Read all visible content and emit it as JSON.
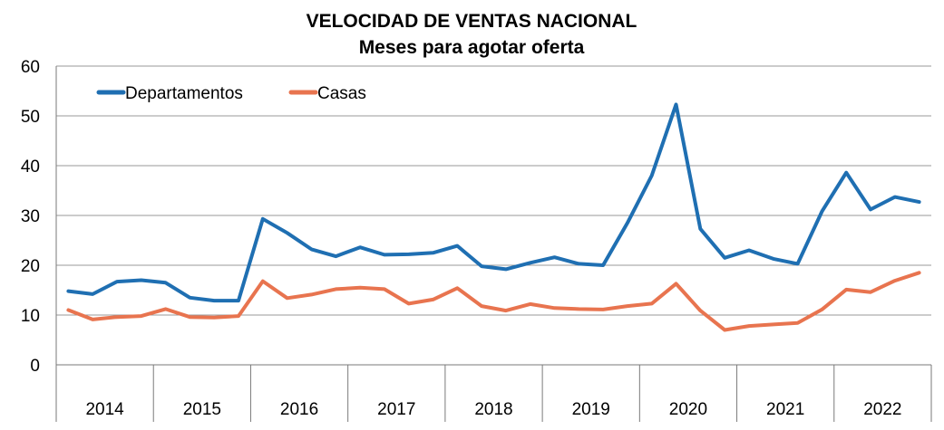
{
  "chart_data": {
    "type": "line",
    "title": "VELOCIDAD DE VENTAS NACIONAL",
    "subtitle": "Meses para agotar oferta",
    "xlabel": "",
    "ylabel": "",
    "ylim": [
      0,
      60
    ],
    "yticks": [
      "0",
      "10",
      "20",
      "30",
      "40",
      "50",
      "60"
    ],
    "grid": true,
    "legend_position": "top-left",
    "years": [
      "2014",
      "2015",
      "2016",
      "2017",
      "2018",
      "2019",
      "2020",
      "2021",
      "2022"
    ],
    "points_per_year": 4,
    "series": [
      {
        "name": "Departamentos",
        "color": "#1f6fb2",
        "values": [
          14.8,
          14.2,
          16.7,
          17.0,
          16.5,
          13.5,
          12.9,
          12.9,
          29.3,
          26.5,
          23.2,
          21.8,
          23.6,
          22.1,
          22.2,
          22.5,
          23.9,
          19.8,
          19.2,
          20.5,
          21.6,
          20.3,
          20.0,
          28.5,
          38.0,
          52.3,
          27.3,
          21.5,
          23.0,
          21.3,
          20.3,
          30.8,
          38.6,
          31.2,
          33.7,
          32.7
        ]
      },
      {
        "name": "Casas",
        "color": "#e8744f",
        "values": [
          11.0,
          9.1,
          9.6,
          9.8,
          11.2,
          9.6,
          9.5,
          9.8,
          16.8,
          13.4,
          14.1,
          15.2,
          15.5,
          15.2,
          12.3,
          13.1,
          15.4,
          11.8,
          10.9,
          12.2,
          11.4,
          11.2,
          11.1,
          11.8,
          12.3,
          16.3,
          10.9,
          7.0,
          7.8,
          8.1,
          8.4,
          11.1,
          15.1,
          14.6,
          16.9,
          18.5
        ]
      }
    ]
  }
}
